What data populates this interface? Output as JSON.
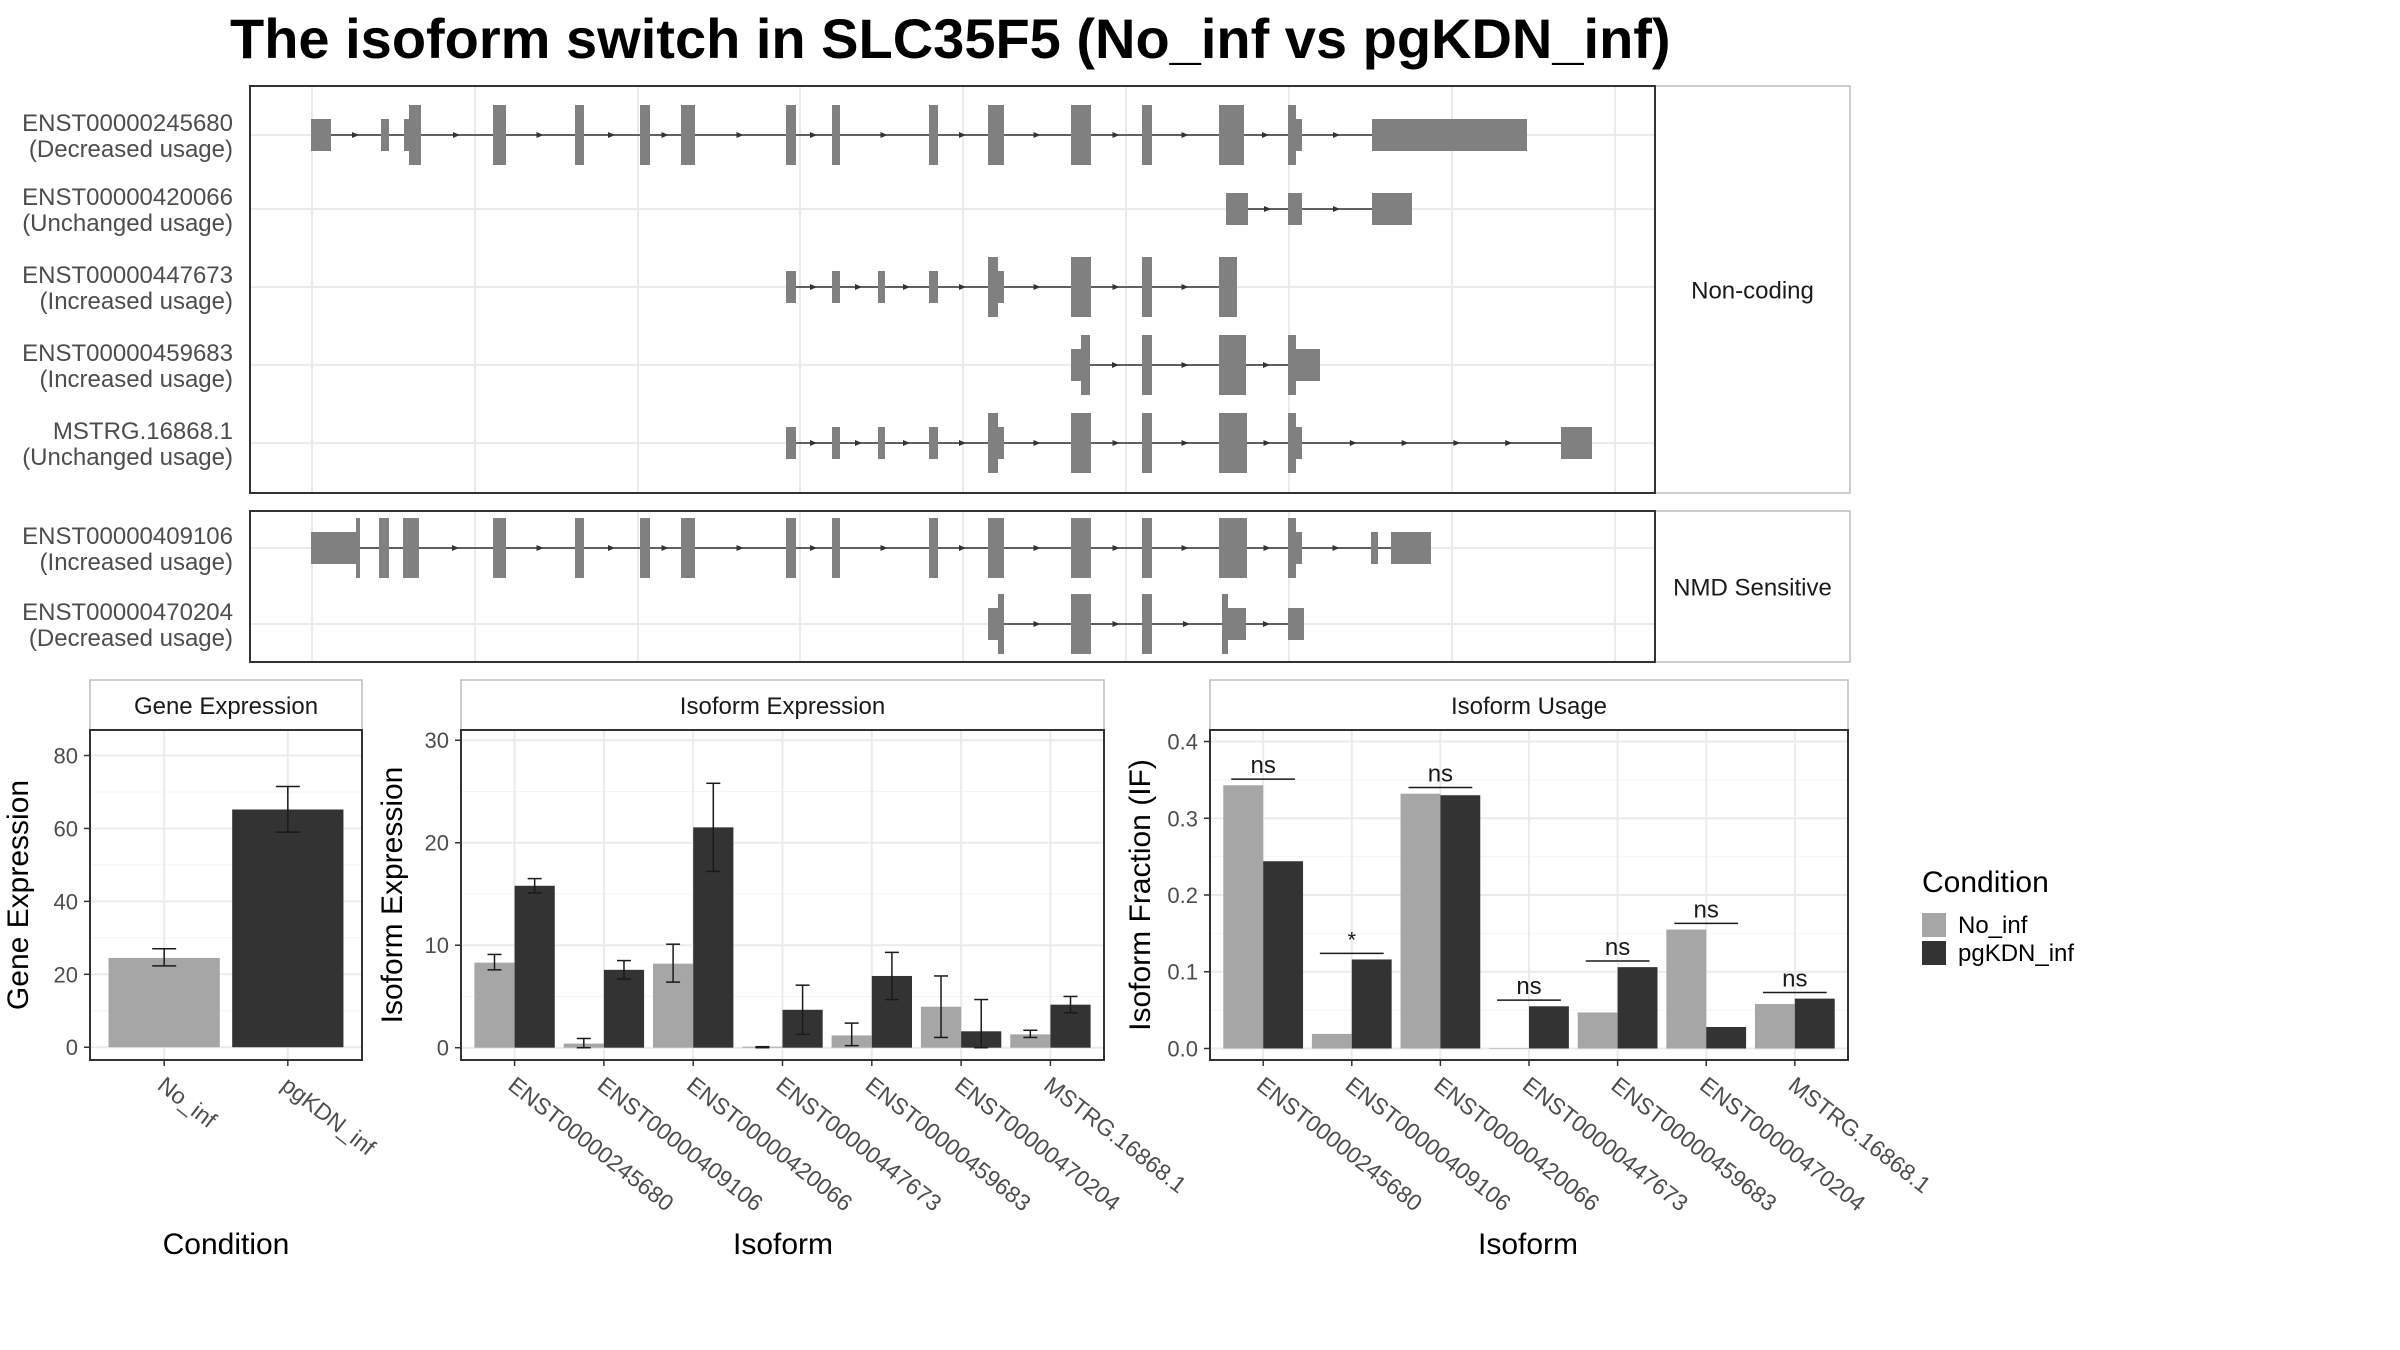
{
  "title": "The isoform switch in SLC35F5 (No_inf vs pgKDN_inf)",
  "colors": {
    "No_inf": "#a6a6a6",
    "pgKDN_inf": "#333333",
    "exon": "#808080",
    "intron": "#333333",
    "grid": "#ebebeb",
    "frame": "#333333",
    "strip": "#bdbdbd"
  },
  "transcripts": {
    "panels": [
      {
        "label": "Non-coding",
        "tracks": [
          {
            "id": "ENST00000245680",
            "usage": "(Decreased usage)"
          },
          {
            "id": "ENST00000420066",
            "usage": "(Unchanged usage)"
          },
          {
            "id": "ENST00000447673",
            "usage": "(Increased usage)"
          },
          {
            "id": "ENST00000459683",
            "usage": "(Increased usage)"
          },
          {
            "id": "MSTRG.16868.1",
            "usage": "(Unchanged usage)"
          }
        ]
      },
      {
        "label": "NMD Sensitive",
        "tracks": [
          {
            "id": "ENST00000409106",
            "usage": "(Increased usage)"
          },
          {
            "id": "ENST00000470204",
            "usage": "(Decreased usage)"
          }
        ]
      }
    ]
  },
  "legend": {
    "title": "Condition",
    "items": [
      "No_inf",
      "pgKDN_inf"
    ]
  },
  "chart_data": [
    {
      "type": "bar",
      "title": "Gene Expression",
      "xlabel": "Condition",
      "ylabel": "Gene Expression",
      "categories": [
        "No_inf",
        "pgKDN_inf"
      ],
      "values": [
        24.5,
        65.2
      ],
      "errors": [
        [
          22.3,
          27.0
        ],
        [
          59.0,
          71.5
        ]
      ],
      "ylim": [
        -3.5,
        87
      ],
      "yticks": [
        0,
        20,
        40,
        60,
        80
      ]
    },
    {
      "type": "bar",
      "title": "Isoform Expression",
      "xlabel": "Isoform",
      "ylabel": "Isoform Expression",
      "categories": [
        "ENST00000245680",
        "ENST00000409106",
        "ENST00000420066",
        "ENST00000447673",
        "ENST00000459683",
        "ENST00000470204",
        "MSTRG.16868.1"
      ],
      "series": [
        {
          "name": "No_inf",
          "values": [
            8.3,
            0.4,
            8.2,
            0.1,
            1.2,
            4.0,
            1.3
          ],
          "errors": [
            [
              7.6,
              9.1
            ],
            [
              0,
              0.9
            ],
            [
              6.4,
              10.1
            ],
            [
              0,
              0.1
            ],
            [
              0.2,
              2.4
            ],
            [
              1.0,
              7.0
            ],
            [
              1.0,
              1.7
            ]
          ]
        },
        {
          "name": "pgKDN_inf",
          "values": [
            15.8,
            7.6,
            21.5,
            3.7,
            7.0,
            1.6,
            4.2
          ],
          "errors": [
            [
              15.1,
              16.5
            ],
            [
              6.7,
              8.5
            ],
            [
              17.2,
              25.8
            ],
            [
              1.3,
              6.1
            ],
            [
              4.7,
              9.3
            ],
            [
              0,
              4.7
            ],
            [
              3.4,
              5.0
            ]
          ]
        }
      ],
      "ylim": [
        -1.2,
        31
      ],
      "yticks": [
        0,
        10,
        20,
        30
      ]
    },
    {
      "type": "bar",
      "title": "Isoform Usage",
      "xlabel": "Isoform",
      "ylabel": "Isoform Fraction (IF)",
      "categories": [
        "ENST00000245680",
        "ENST00000409106",
        "ENST00000420066",
        "ENST00000447673",
        "ENST00000459683",
        "ENST00000470204",
        "MSTRG.16868.1"
      ],
      "series": [
        {
          "name": "No_inf",
          "values": [
            0.343,
            0.019,
            0.332,
            0.0,
            0.047,
            0.155,
            0.058
          ]
        },
        {
          "name": "pgKDN_inf",
          "values": [
            0.244,
            0.116,
            0.33,
            0.055,
            0.106,
            0.028,
            0.065
          ]
        }
      ],
      "significance": [
        "ns",
        "*",
        "ns",
        "ns",
        "ns",
        "ns",
        "ns"
      ],
      "ylim": [
        -0.015,
        0.415
      ],
      "yticks": [
        0.0,
        0.1,
        0.2,
        0.3,
        0.4
      ],
      "ytick_labels": [
        "0.0",
        "0.1",
        "0.2",
        "0.3",
        "0.4"
      ]
    }
  ]
}
